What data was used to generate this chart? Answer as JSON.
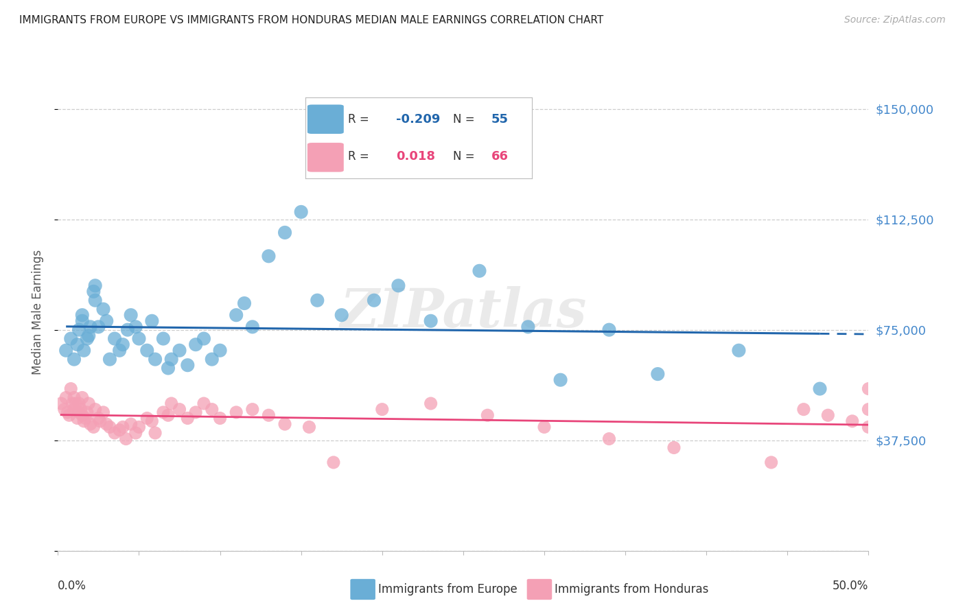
{
  "title": "IMMIGRANTS FROM EUROPE VS IMMIGRANTS FROM HONDURAS MEDIAN MALE EARNINGS CORRELATION CHART",
  "source": "Source: ZipAtlas.com",
  "ylabel": "Median Male Earnings",
  "yticks": [
    0,
    37500,
    75000,
    112500,
    150000
  ],
  "ytick_labels": [
    "",
    "$37,500",
    "$75,000",
    "$112,500",
    "$150,000"
  ],
  "xlim": [
    0.0,
    0.5
  ],
  "ylim": [
    20000,
    162000
  ],
  "watermark": "ZIPatlas",
  "legend_europe_r": "-0.209",
  "legend_europe_n": "55",
  "legend_honduras_r": "0.018",
  "legend_honduras_n": "66",
  "europe_color": "#6aaed6",
  "honduras_color": "#f4a0b5",
  "europe_line_color": "#2166ac",
  "honduras_line_color": "#e8457a",
  "background_color": "#ffffff",
  "grid_color": "#c8c8c8",
  "title_color": "#222222",
  "axis_label_color": "#555555",
  "right_tick_color": "#4488cc",
  "europe_scatter_x": [
    0.005,
    0.008,
    0.01,
    0.012,
    0.013,
    0.015,
    0.015,
    0.016,
    0.018,
    0.019,
    0.02,
    0.022,
    0.023,
    0.023,
    0.025,
    0.028,
    0.03,
    0.032,
    0.035,
    0.038,
    0.04,
    0.043,
    0.045,
    0.048,
    0.05,
    0.055,
    0.058,
    0.06,
    0.065,
    0.068,
    0.07,
    0.075,
    0.08,
    0.085,
    0.09,
    0.095,
    0.1,
    0.11,
    0.115,
    0.12,
    0.13,
    0.14,
    0.15,
    0.16,
    0.175,
    0.195,
    0.21,
    0.23,
    0.26,
    0.29,
    0.31,
    0.34,
    0.37,
    0.42,
    0.47
  ],
  "europe_scatter_y": [
    68000,
    72000,
    65000,
    70000,
    75000,
    80000,
    78000,
    68000,
    72000,
    73000,
    76000,
    88000,
    90000,
    85000,
    76000,
    82000,
    78000,
    65000,
    72000,
    68000,
    70000,
    75000,
    80000,
    76000,
    72000,
    68000,
    78000,
    65000,
    72000,
    62000,
    65000,
    68000,
    63000,
    70000,
    72000,
    65000,
    68000,
    80000,
    84000,
    76000,
    100000,
    108000,
    115000,
    85000,
    80000,
    85000,
    90000,
    78000,
    95000,
    76000,
    58000,
    75000,
    60000,
    68000,
    55000
  ],
  "honduras_scatter_x": [
    0.002,
    0.004,
    0.005,
    0.006,
    0.007,
    0.008,
    0.009,
    0.01,
    0.01,
    0.011,
    0.012,
    0.013,
    0.013,
    0.014,
    0.015,
    0.015,
    0.016,
    0.017,
    0.018,
    0.019,
    0.02,
    0.022,
    0.023,
    0.025,
    0.026,
    0.028,
    0.03,
    0.032,
    0.035,
    0.038,
    0.04,
    0.042,
    0.045,
    0.048,
    0.05,
    0.055,
    0.058,
    0.06,
    0.065,
    0.068,
    0.07,
    0.075,
    0.08,
    0.085,
    0.09,
    0.095,
    0.1,
    0.11,
    0.12,
    0.13,
    0.14,
    0.155,
    0.17,
    0.2,
    0.23,
    0.265,
    0.3,
    0.34,
    0.38,
    0.44,
    0.46,
    0.475,
    0.49,
    0.5,
    0.5,
    0.5
  ],
  "honduras_scatter_y": [
    50000,
    48000,
    52000,
    47000,
    46000,
    55000,
    50000,
    48000,
    52000,
    50000,
    45000,
    50000,
    47000,
    48000,
    52000,
    46000,
    44000,
    45000,
    47000,
    50000,
    43000,
    42000,
    48000,
    45000,
    44000,
    47000,
    43000,
    42000,
    40000,
    41000,
    42000,
    38000,
    43000,
    40000,
    42000,
    45000,
    44000,
    40000,
    47000,
    46000,
    50000,
    48000,
    45000,
    47000,
    50000,
    48000,
    45000,
    47000,
    48000,
    46000,
    43000,
    42000,
    30000,
    48000,
    50000,
    46000,
    42000,
    38000,
    35000,
    30000,
    48000,
    46000,
    44000,
    48000,
    42000,
    55000
  ]
}
